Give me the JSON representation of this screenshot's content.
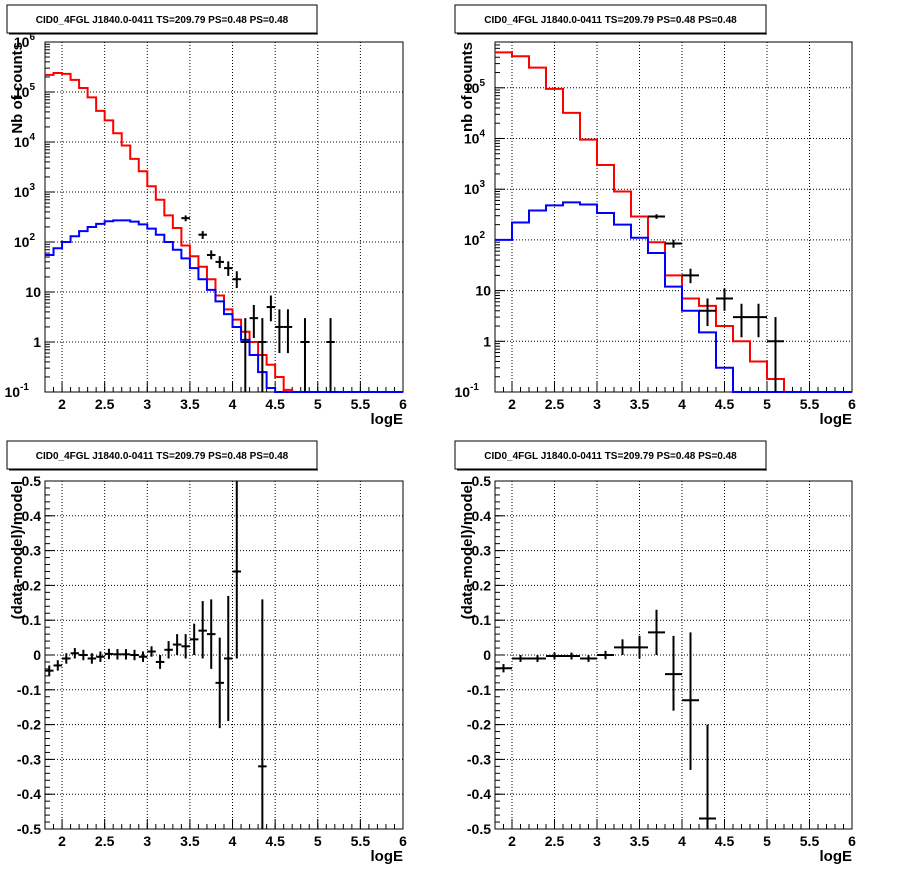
{
  "chart_data": [
    {
      "type": "line",
      "title": "CID0_4FGL J1840.0-0411 TS=209.79 PS=0.48 PS=0.48",
      "xlabel": "logE",
      "ylabel": "Nb of counts",
      "xlim": [
        1.8,
        6.0
      ],
      "ylim": [
        0.1,
        1000000
      ],
      "yscale": "log",
      "grid": true,
      "x_ticks": [
        "2",
        "2.5",
        "3",
        "3.5",
        "4",
        "4.5",
        "5",
        "5.5",
        "6"
      ],
      "y_ticks": [
        {
          "value": 0.1,
          "base": "10",
          "exp": "-1"
        },
        {
          "value": 1,
          "base": "1",
          "exp": ""
        },
        {
          "value": 10,
          "base": "10",
          "exp": ""
        },
        {
          "value": 100,
          "base": "10",
          "exp": "2"
        },
        {
          "value": 1000,
          "base": "10",
          "exp": "3"
        },
        {
          "value": 10000,
          "base": "10",
          "exp": "4"
        },
        {
          "value": 100000,
          "base": "10",
          "exp": "5"
        },
        {
          "value": 1000000,
          "base": "10",
          "exp": "6"
        }
      ],
      "bin_edges": [
        1.8,
        1.9,
        2.0,
        2.1,
        2.2,
        2.3,
        2.4,
        2.5,
        2.6,
        2.7,
        2.8,
        2.9,
        3.0,
        3.1,
        3.2,
        3.3,
        3.4,
        3.5,
        3.6,
        3.7,
        3.8,
        3.9,
        4.0,
        4.1,
        4.2,
        4.3,
        4.4,
        4.5,
        4.6,
        4.7,
        4.8,
        4.9,
        5.0,
        5.1,
        5.2,
        5.3,
        5.4,
        5.5,
        5.6,
        5.7,
        5.8,
        5.9,
        6.0
      ],
      "series": [
        {
          "color": "#ff0000",
          "style": "step",
          "values": [
            220000,
            240000,
            230000,
            175000,
            120000,
            78000,
            42000,
            27000,
            15000,
            8500,
            4600,
            2600,
            1300,
            700,
            340,
            190,
            85,
            52,
            32,
            18,
            8.5,
            4.5,
            2.8,
            1.6,
            1.0,
            0.55,
            0.35,
            0.2,
            0.11,
            0.1,
            0.1,
            0.1,
            0.1,
            0.1,
            0.1,
            0.1,
            0.1,
            0.1,
            0.1,
            0.1,
            0.1,
            0.1
          ]
        },
        {
          "color": "#0000ff",
          "style": "step",
          "values": [
            55,
            75,
            100,
            130,
            165,
            200,
            230,
            260,
            270,
            270,
            255,
            225,
            185,
            140,
            100,
            70,
            47,
            30,
            18,
            11,
            6.5,
            3.6,
            2.0,
            1.1,
            0.55,
            0.25,
            0.12,
            0.1,
            0.1,
            0.1,
            0.1,
            0.1,
            0.1,
            0.1,
            0.1,
            0.1,
            0.1,
            0.1,
            0.1,
            0.1,
            0.1,
            0.1
          ]
        },
        {
          "color": "#000000",
          "style": "errorbar",
          "xerr": 0.05,
          "points": [
            {
              "x": 3.45,
              "y": 300,
              "lo": 260,
              "hi": 340
            },
            {
              "x": 3.65,
              "y": 140,
              "lo": 115,
              "hi": 165
            },
            {
              "x": 3.75,
              "y": 55,
              "lo": 45,
              "hi": 68
            },
            {
              "x": 3.85,
              "y": 40,
              "lo": 30,
              "hi": 52
            },
            {
              "x": 3.95,
              "y": 30,
              "lo": 21,
              "hi": 41
            },
            {
              "x": 4.05,
              "y": 18,
              "lo": 12,
              "hi": 26
            },
            {
              "x": 4.15,
              "y": 1.0,
              "lo": 0.1,
              "hi": 3.0
            },
            {
              "x": 4.25,
              "y": 3.0,
              "lo": 1.2,
              "hi": 5.5
            },
            {
              "x": 4.35,
              "y": 1.0,
              "lo": 0.1,
              "hi": 3.0
            },
            {
              "x": 4.45,
              "y": 5.0,
              "lo": 2.6,
              "hi": 8.5
            },
            {
              "x": 4.55,
              "y": 2.0,
              "lo": 0.6,
              "hi": 4.5
            },
            {
              "x": 4.65,
              "y": 2.0,
              "lo": 0.6,
              "hi": 4.5
            },
            {
              "x": 4.85,
              "y": 1.0,
              "lo": 0.1,
              "hi": 3.0
            },
            {
              "x": 5.15,
              "y": 1.0,
              "lo": 0.1,
              "hi": 3.0
            }
          ]
        }
      ]
    },
    {
      "type": "line",
      "title": "CID0_4FGL J1840.0-0411 TS=209.79 PS=0.48 PS=0.48",
      "xlabel": "logE",
      "ylabel": "nb of counts",
      "xlim": [
        1.8,
        6.0
      ],
      "ylim": [
        0.1,
        800000
      ],
      "yscale": "log",
      "grid": true,
      "x_ticks": [
        "2",
        "2.5",
        "3",
        "3.5",
        "4",
        "4.5",
        "5",
        "5.5",
        "6"
      ],
      "y_ticks": [
        {
          "value": 0.1,
          "base": "10",
          "exp": "-1"
        },
        {
          "value": 1,
          "base": "1",
          "exp": ""
        },
        {
          "value": 10,
          "base": "10",
          "exp": ""
        },
        {
          "value": 100,
          "base": "10",
          "exp": "2"
        },
        {
          "value": 1000,
          "base": "10",
          "exp": "3"
        },
        {
          "value": 10000,
          "base": "10",
          "exp": "4"
        },
        {
          "value": 100000,
          "base": "10",
          "exp": "5"
        }
      ],
      "bin_edges": [
        1.8,
        2.0,
        2.2,
        2.4,
        2.6,
        2.8,
        3.0,
        3.2,
        3.4,
        3.6,
        3.8,
        4.0,
        4.2,
        4.4,
        4.6,
        4.8,
        5.0,
        5.2,
        5.4,
        5.6,
        5.8,
        6.0
      ],
      "series": [
        {
          "color": "#ff0000",
          "style": "step",
          "values": [
            500000,
            420000,
            250000,
            95000,
            32000,
            9500,
            3000,
            900,
            290,
            90,
            20,
            7.0,
            5.0,
            2.0,
            1.0,
            0.4,
            0.18,
            0.1,
            0.1,
            0.1,
            0.1
          ]
        },
        {
          "color": "#0000ff",
          "style": "step",
          "values": [
            100,
            220,
            380,
            480,
            550,
            500,
            340,
            200,
            110,
            55,
            12,
            4.0,
            1.5,
            0.3,
            0.1,
            0.1,
            0.1,
            0.1,
            0.1,
            0.1,
            0.1
          ]
        },
        {
          "color": "#000000",
          "style": "errorbar",
          "xerr": 0.1,
          "points": [
            {
              "x": 3.7,
              "y": 290,
              "lo": 260,
              "hi": 320
            },
            {
              "x": 3.9,
              "y": 85,
              "lo": 70,
              "hi": 100
            },
            {
              "x": 4.1,
              "y": 20,
              "lo": 14,
              "hi": 27
            },
            {
              "x": 4.3,
              "y": 4.0,
              "lo": 2.0,
              "hi": 7.0
            },
            {
              "x": 4.5,
              "y": 7.0,
              "lo": 4.0,
              "hi": 11
            },
            {
              "x": 4.7,
              "y": 3.0,
              "lo": 1.2,
              "hi": 5.5
            },
            {
              "x": 4.9,
              "y": 3.0,
              "lo": 1.2,
              "hi": 5.5
            },
            {
              "x": 5.1,
              "y": 1.0,
              "lo": 0.1,
              "hi": 3.0
            }
          ]
        }
      ]
    },
    {
      "type": "scatter",
      "title": "CID0_4FGL J1840.0-0411 TS=209.79 PS=0.48 PS=0.48",
      "xlabel": "logE",
      "ylabel": "(data-model)/model",
      "xlim": [
        1.8,
        6.0
      ],
      "ylim": [
        -0.5,
        0.5
      ],
      "grid": true,
      "x_ticks": [
        "2",
        "2.5",
        "3",
        "3.5",
        "4",
        "4.5",
        "5",
        "5.5",
        "6"
      ],
      "y_ticks": [
        "-0.5",
        "-0.4",
        "-0.3",
        "-0.2",
        "-0.1",
        "0",
        "0.1",
        "0.2",
        "0.3",
        "0.4",
        "0.5"
      ],
      "xerr": 0.05,
      "points": [
        {
          "x": 1.85,
          "y": -0.045,
          "lo": -0.06,
          "hi": -0.03
        },
        {
          "x": 1.95,
          "y": -0.03,
          "lo": -0.045,
          "hi": -0.015
        },
        {
          "x": 2.05,
          "y": -0.01,
          "lo": -0.025,
          "hi": 0.005
        },
        {
          "x": 2.15,
          "y": 0.005,
          "lo": -0.01,
          "hi": 0.02
        },
        {
          "x": 2.25,
          "y": 0.0,
          "lo": -0.015,
          "hi": 0.015
        },
        {
          "x": 2.35,
          "y": -0.01,
          "lo": -0.025,
          "hi": 0.005
        },
        {
          "x": 2.45,
          "y": -0.005,
          "lo": -0.02,
          "hi": 0.01
        },
        {
          "x": 2.55,
          "y": 0.003,
          "lo": -0.012,
          "hi": 0.018
        },
        {
          "x": 2.65,
          "y": 0.002,
          "lo": -0.013,
          "hi": 0.017
        },
        {
          "x": 2.75,
          "y": 0.002,
          "lo": -0.013,
          "hi": 0.017
        },
        {
          "x": 2.85,
          "y": 0.0,
          "lo": -0.015,
          "hi": 0.015
        },
        {
          "x": 2.95,
          "y": -0.005,
          "lo": -0.02,
          "hi": 0.01
        },
        {
          "x": 3.05,
          "y": 0.01,
          "lo": -0.005,
          "hi": 0.025
        },
        {
          "x": 3.15,
          "y": -0.02,
          "lo": -0.04,
          "hi": 0.0
        },
        {
          "x": 3.25,
          "y": 0.015,
          "lo": -0.01,
          "hi": 0.04
        },
        {
          "x": 3.35,
          "y": 0.03,
          "lo": 0.0,
          "hi": 0.06
        },
        {
          "x": 3.45,
          "y": 0.025,
          "lo": -0.01,
          "hi": 0.06
        },
        {
          "x": 3.55,
          "y": 0.045,
          "lo": 0.0,
          "hi": 0.09
        },
        {
          "x": 3.65,
          "y": 0.07,
          "lo": -0.01,
          "hi": 0.155
        },
        {
          "x": 3.75,
          "y": 0.06,
          "lo": -0.04,
          "hi": 0.16
        },
        {
          "x": 3.85,
          "y": -0.08,
          "lo": -0.21,
          "hi": 0.05
        },
        {
          "x": 3.95,
          "y": -0.01,
          "lo": -0.19,
          "hi": 0.17
        },
        {
          "x": 4.05,
          "y": 0.24,
          "lo": -0.01,
          "hi": 0.5
        },
        {
          "x": 4.35,
          "y": -0.32,
          "lo": -0.5,
          "hi": 0.16
        }
      ]
    },
    {
      "type": "scatter",
      "title": "CID0_4FGL J1840.0-0411 TS=209.79 PS=0.48 PS=0.48",
      "xlabel": "logE",
      "ylabel": "(data-model)/model",
      "xlim": [
        1.8,
        6.0
      ],
      "ylim": [
        -0.5,
        0.5
      ],
      "grid": true,
      "x_ticks": [
        "2",
        "2.5",
        "3",
        "3.5",
        "4",
        "4.5",
        "5",
        "5.5",
        "6"
      ],
      "y_ticks": [
        "-0.5",
        "-0.4",
        "-0.3",
        "-0.2",
        "-0.1",
        "0",
        "0.1",
        "0.2",
        "0.3",
        "0.4",
        "0.5"
      ],
      "xerr": 0.1,
      "points": [
        {
          "x": 1.9,
          "y": -0.038,
          "lo": -0.05,
          "hi": -0.026
        },
        {
          "x": 2.1,
          "y": -0.01,
          "lo": -0.02,
          "hi": 0.0
        },
        {
          "x": 2.3,
          "y": -0.01,
          "lo": -0.02,
          "hi": 0.0
        },
        {
          "x": 2.5,
          "y": -0.003,
          "lo": -0.013,
          "hi": 0.007
        },
        {
          "x": 2.7,
          "y": -0.003,
          "lo": -0.013,
          "hi": 0.007
        },
        {
          "x": 2.9,
          "y": -0.01,
          "lo": -0.02,
          "hi": 0.0
        },
        {
          "x": 3.1,
          "y": 0.0,
          "lo": -0.012,
          "hi": 0.012
        },
        {
          "x": 3.3,
          "y": 0.022,
          "lo": 0.0,
          "hi": 0.045
        },
        {
          "x": 3.5,
          "y": 0.022,
          "lo": -0.01,
          "hi": 0.055
        },
        {
          "x": 3.7,
          "y": 0.065,
          "lo": 0.0,
          "hi": 0.13
        },
        {
          "x": 3.9,
          "y": -0.055,
          "lo": -0.16,
          "hi": 0.055
        },
        {
          "x": 4.1,
          "y": -0.13,
          "lo": -0.33,
          "hi": 0.065
        },
        {
          "x": 4.3,
          "y": -0.47,
          "lo": -0.5,
          "hi": -0.2
        }
      ]
    }
  ]
}
